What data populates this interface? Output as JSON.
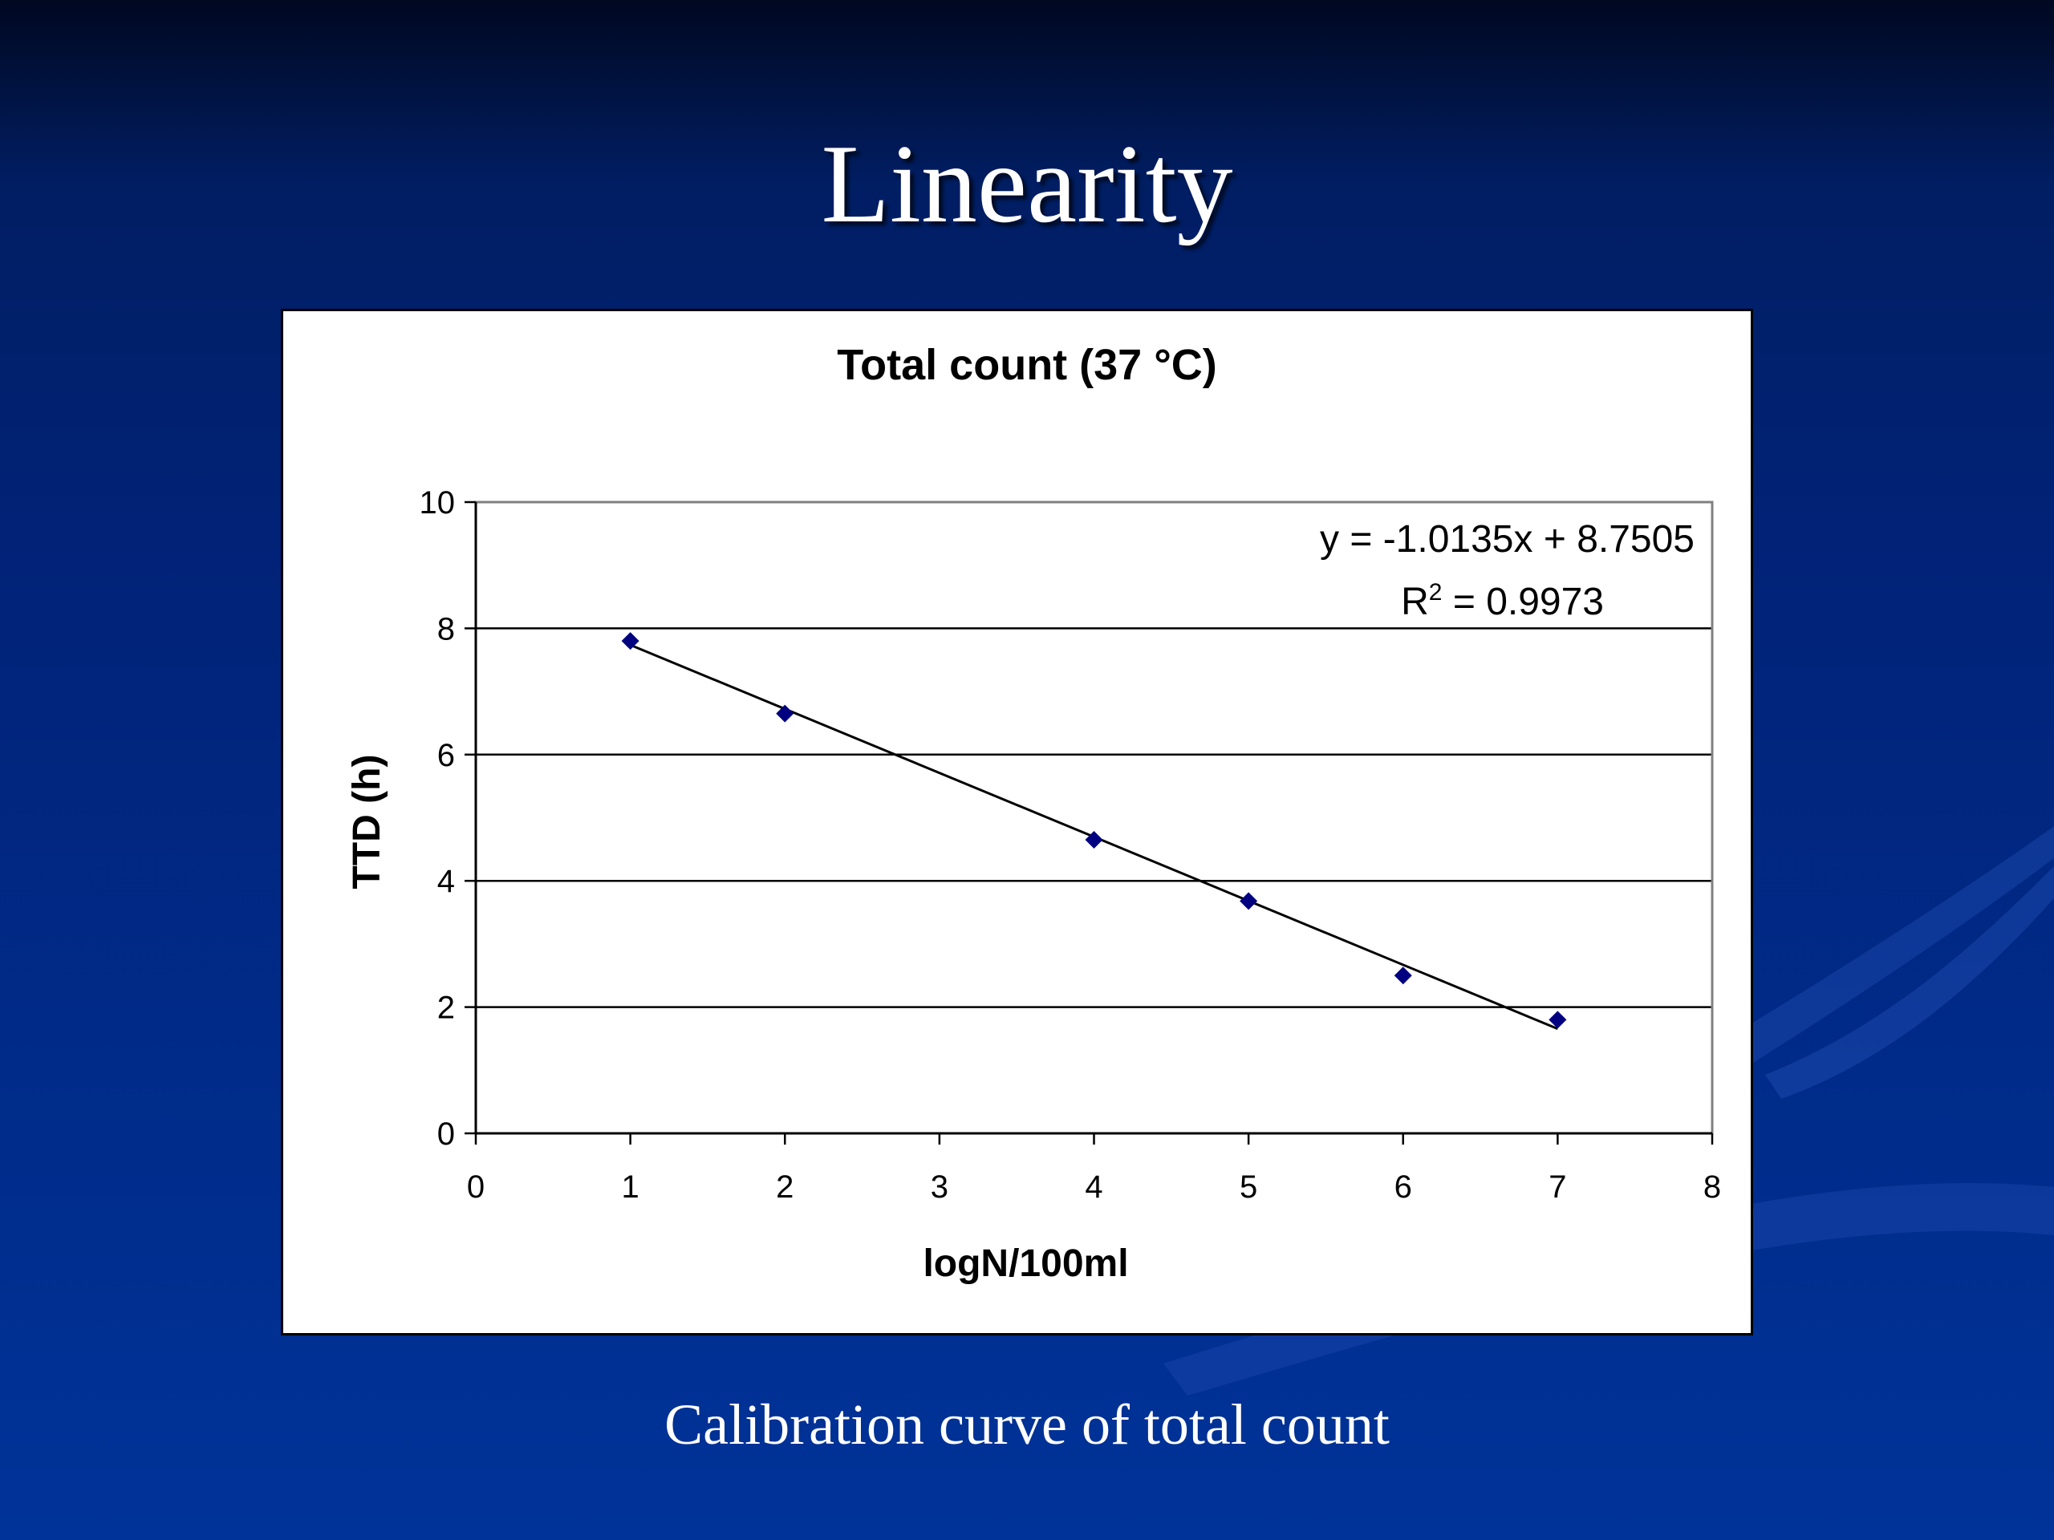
{
  "slide": {
    "title": "Linearity",
    "caption": "Calibration curve of total count"
  },
  "colors": {
    "background": "#012a80",
    "marker": "#000080",
    "trendline": "#000000",
    "gridline": "#000000",
    "plot_border": "#808080"
  },
  "chart_data": {
    "type": "scatter",
    "title": "Total count (37 °C)",
    "xlabel": "logN/100ml",
    "ylabel": "TTD (h)",
    "xlim": [
      0,
      8
    ],
    "ylim": [
      0,
      10
    ],
    "x_ticks": [
      "0",
      "1",
      "2",
      "3",
      "4",
      "5",
      "6",
      "7",
      "8"
    ],
    "y_ticks": [
      "0",
      "2",
      "4",
      "6",
      "8",
      "10"
    ],
    "grid": "horizontal",
    "series": [
      {
        "name": "TTD",
        "marker": "diamond",
        "x": [
          1,
          2,
          4,
          5,
          6,
          7
        ],
        "y": [
          7.8,
          6.65,
          4.65,
          3.68,
          2.5,
          1.8
        ]
      }
    ],
    "trendline": {
      "type": "linear",
      "slope": -1.0135,
      "intercept": 8.7505,
      "x_range": [
        1,
        7
      ],
      "equation_text": "y = -1.0135x + 8.7505",
      "r2_prefix": "R",
      "r2_superscript": "2",
      "r2_suffix": " = 0.9973"
    }
  }
}
